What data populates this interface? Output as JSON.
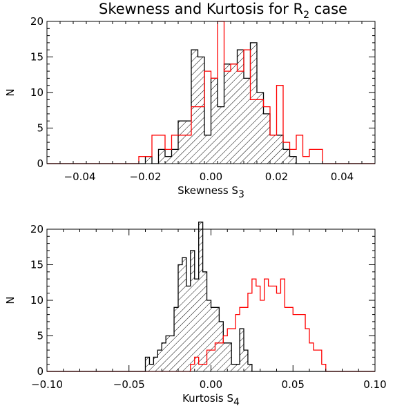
{
  "chart_data": [
    {
      "type": "bar",
      "title_main": "Skewness and Kurtosis for R",
      "title_sub": "2",
      "title_end": " case",
      "xlabel_main": "Skewness S",
      "xlabel_sub": "3",
      "ylabel": "N",
      "xlim": [
        -0.05,
        0.05
      ],
      "ylim": [
        0,
        20
      ],
      "xticks": [
        -0.04,
        -0.02,
        0.0,
        0.02,
        0.04
      ],
      "xtick_labels": [
        "−0.04",
        "−0.02",
        "0.00",
        "0.02",
        "0.04"
      ],
      "yticks": [
        0,
        5,
        10,
        15,
        20
      ],
      "ytick_labels": [
        "0",
        "5",
        "10",
        "15",
        "20"
      ],
      "bin_start": -0.022,
      "bin_width": 0.002,
      "series": [
        {
          "color": "#000000",
          "hatched": true,
          "values": [
            0,
            1,
            0,
            2,
            1,
            2,
            6,
            6,
            16,
            15,
            4,
            12,
            8,
            14,
            14,
            16,
            12,
            17,
            10,
            7,
            4,
            4,
            2,
            1,
            0,
            0,
            0,
            0
          ]
        },
        {
          "color": "#ff0000",
          "hatched": false,
          "values": [
            1,
            1,
            4,
            4,
            2,
            4,
            4,
            4,
            8,
            8,
            13,
            12,
            20,
            13,
            14,
            13,
            16,
            9,
            9,
            8,
            4,
            11,
            3,
            2,
            4,
            1,
            2,
            2
          ]
        }
      ]
    },
    {
      "type": "bar",
      "xlabel_main": "Kurtosis S",
      "xlabel_sub": "4",
      "ylabel": "N",
      "xlim": [
        -0.1,
        0.1
      ],
      "ylim": [
        0,
        20
      ],
      "xticks": [
        -0.1,
        -0.05,
        0.0,
        0.05,
        0.1
      ],
      "xtick_labels": [
        "−0.10",
        "−0.05",
        "0.00",
        "0.05",
        "0.10"
      ],
      "yticks": [
        0,
        5,
        10,
        15,
        20
      ],
      "ytick_labels": [
        "0",
        "5",
        "10",
        "15",
        "20"
      ],
      "bin_start": -0.04,
      "bin_width": 0.0025,
      "series": [
        {
          "color": "#000000",
          "hatched": true,
          "values": [
            2,
            1,
            2,
            3,
            4,
            5,
            5,
            9,
            15,
            16,
            12,
            17,
            13,
            21,
            14,
            10,
            9,
            9,
            7,
            4,
            4,
            1,
            1,
            6,
            3,
            1,
            0,
            0,
            0,
            0,
            0,
            0,
            0,
            0,
            0,
            0,
            0,
            0,
            0,
            0,
            0,
            0,
            0,
            0
          ]
        },
        {
          "color": "#ff0000",
          "hatched": false,
          "values": [
            0,
            0,
            0,
            0,
            0,
            0,
            0,
            0,
            0,
            0,
            0,
            1,
            2,
            1,
            1,
            3,
            3,
            4,
            4,
            5,
            6,
            6,
            8,
            9,
            9,
            11,
            13,
            12,
            10,
            13,
            12,
            12,
            11,
            13,
            9,
            9,
            8,
            8,
            8,
            6,
            4,
            3,
            3,
            1,
            0,
            0
          ]
        }
      ]
    }
  ]
}
